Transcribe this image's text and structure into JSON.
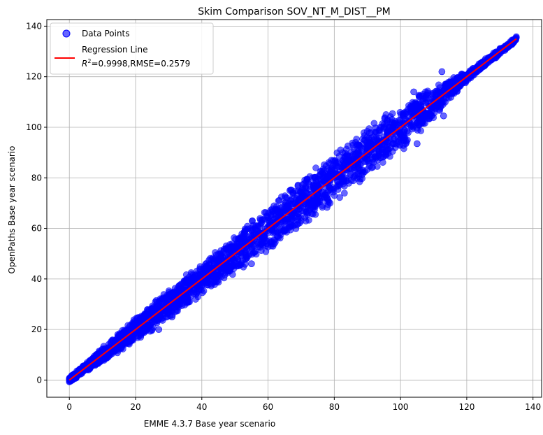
{
  "chart_data": {
    "type": "scatter",
    "title": "Skim Comparison SOV_NT_M_DIST__PM",
    "xlabel": "EMME 4.3.7 Base year scenario",
    "ylabel": "OpenPaths Base year scenario",
    "xlim": [
      -6.8,
      142.6
    ],
    "ylim": [
      -6.8,
      142.6
    ],
    "xticks": [
      0,
      20,
      40,
      60,
      80,
      100,
      120,
      140
    ],
    "yticks": [
      0,
      20,
      40,
      60,
      80,
      100,
      120,
      140
    ],
    "grid": true,
    "legend_placement": "top-left",
    "series": [
      {
        "name": "Data Points",
        "kind": "scatter",
        "color": "#0000ff",
        "alpha": 0.6,
        "band_center": [
          [
            0,
            0
          ],
          [
            20,
            20
          ],
          [
            40,
            40
          ],
          [
            60,
            60
          ],
          [
            80,
            80
          ],
          [
            100,
            100
          ],
          [
            120,
            120
          ],
          [
            135,
            135
          ]
        ],
        "band_halfwidth": [
          [
            0,
            1
          ],
          [
            20,
            5
          ],
          [
            40,
            7
          ],
          [
            60,
            9
          ],
          [
            80,
            10
          ],
          [
            100,
            10
          ],
          [
            112,
            6
          ],
          [
            120,
            2
          ],
          [
            135,
            1
          ]
        ],
        "outliers": [
          [
            112.5,
            122.0
          ],
          [
            113,
            104.5
          ],
          [
            105,
            93.5
          ],
          [
            101,
            98
          ],
          [
            104,
            114
          ],
          [
            103,
            108
          ],
          [
            96,
            102.5
          ],
          [
            55,
            46
          ],
          [
            34,
            29.5
          ],
          [
            31,
            25
          ],
          [
            27,
            20
          ],
          [
            94,
            88
          ]
        ]
      },
      {
        "name": "Regression Line",
        "kind": "line",
        "color": "#ff0000",
        "x": [
          0,
          135
        ],
        "y": [
          0,
          135
        ],
        "annotation": "R^2=0.9998,RMSE=0.2579"
      }
    ],
    "legend": {
      "items": [
        "Data Points",
        "Regression Line"
      ],
      "stats_prefix": "R",
      "stats_sup": "2",
      "stats_rest": "=0.9998,RMSE=0.2579"
    }
  }
}
